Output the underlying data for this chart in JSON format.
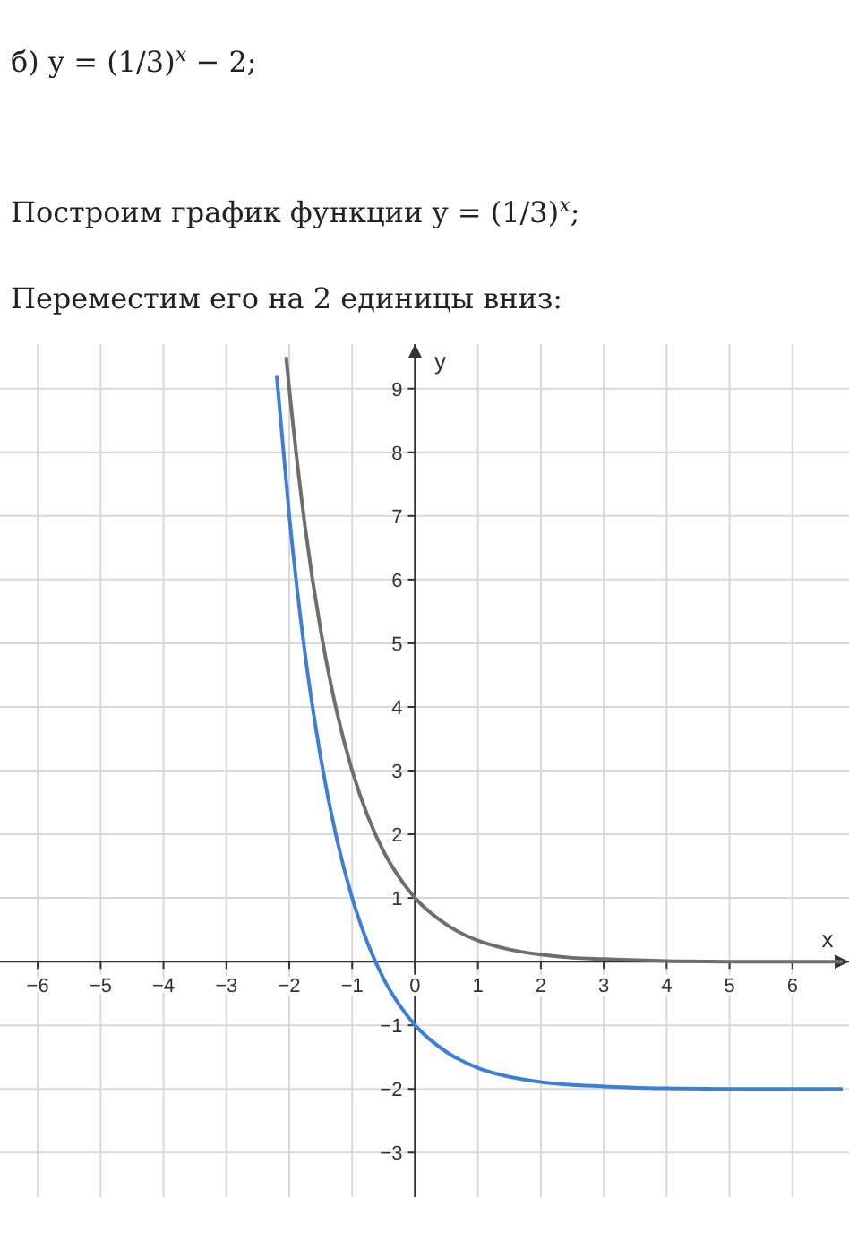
{
  "chart_data": {
    "type": "line",
    "title": "б) y = (1/3)$^{x}$ − 2;",
    "subtitle": "Построим график функции y = (1/3)$^{x}$;",
    "annotations": [
      "Переместим его на 2 единицы вниз:"
    ],
    "xlabel": "x",
    "ylabel": "y",
    "xlim": [
      -6.6,
      6.9
    ],
    "ylim": [
      -3.7,
      9.7
    ],
    "xticks": [
      -6,
      -5,
      -4,
      -3,
      -2,
      -1,
      0,
      1,
      2,
      3,
      4,
      5,
      6
    ],
    "yticks": [
      -3,
      -2,
      -1,
      1,
      2,
      3,
      4,
      5,
      6,
      7,
      8,
      9
    ],
    "grid": true,
    "marker": "none",
    "line_style": "solid",
    "series": [
      {
        "color": "#6e6e6e",
        "x": [
          -2.05,
          -2,
          -1.75,
          -1.5,
          -1.25,
          -1,
          -0.75,
          -0.5,
          -0.25,
          0,
          0.5,
          1,
          1.5,
          2,
          2.5,
          3,
          4,
          5,
          6,
          6.8
        ],
        "values": [
          9.5,
          9,
          6.84,
          5.2,
          3.95,
          3,
          2.28,
          1.73,
          1.32,
          1,
          0.58,
          0.33,
          0.19,
          0.11,
          0.06,
          0.04,
          0.01,
          0,
          0,
          0
        ]
      },
      {
        "color": "#3d7fd6",
        "x": [
          -2.2,
          -2,
          -1.75,
          -1.5,
          -1.25,
          -1,
          -0.75,
          -0.5,
          -0.25,
          0,
          0.5,
          1,
          1.5,
          2,
          3,
          4,
          5,
          6.8
        ],
        "values": [
          9.2,
          7,
          4.84,
          3.2,
          1.95,
          1,
          0.28,
          -0.27,
          -0.68,
          -1,
          -1.42,
          -1.67,
          -1.81,
          -1.89,
          -1.96,
          -1.99,
          -2,
          -2
        ]
      }
    ]
  }
}
